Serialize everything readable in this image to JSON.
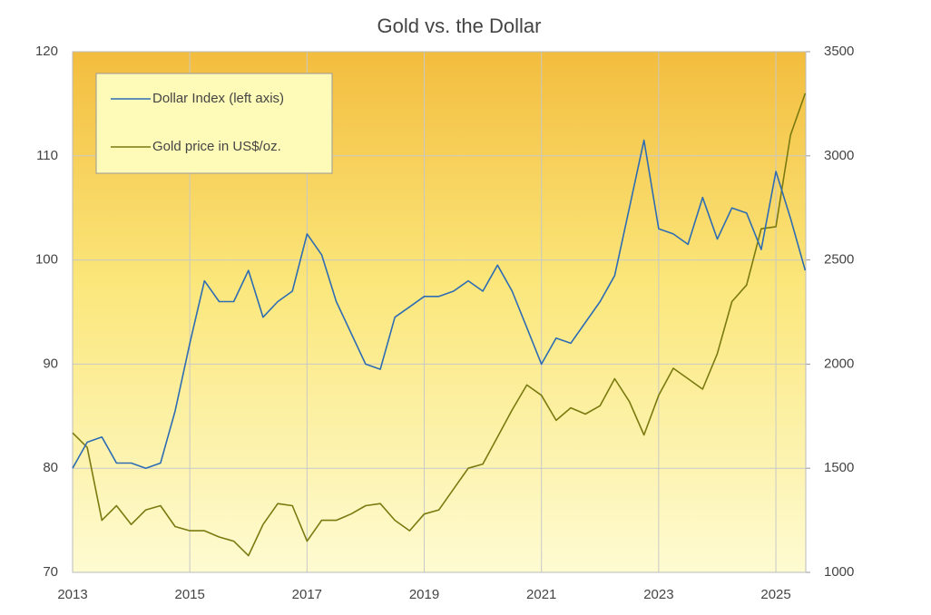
{
  "chart_data": {
    "type": "line",
    "title": "Gold vs. the Dollar",
    "x": [
      2013.0,
      2013.25,
      2013.5,
      2013.75,
      2014.0,
      2014.25,
      2014.5,
      2014.75,
      2015.0,
      2015.25,
      2015.5,
      2015.75,
      2016.0,
      2016.25,
      2016.5,
      2016.75,
      2017.0,
      2017.25,
      2017.5,
      2017.75,
      2018.0,
      2018.25,
      2018.5,
      2018.75,
      2019.0,
      2019.25,
      2019.5,
      2019.75,
      2020.0,
      2020.25,
      2020.5,
      2020.75,
      2021.0,
      2021.25,
      2021.5,
      2021.75,
      2022.0,
      2022.25,
      2022.5,
      2022.75,
      2023.0,
      2023.25,
      2023.5,
      2023.75,
      2024.0,
      2024.25,
      2024.5,
      2024.75,
      2025.0,
      2025.25,
      2025.5
    ],
    "series": [
      {
        "name": "Dollar Index (left axis)",
        "color": "#2e6db4",
        "axis": "y",
        "values": [
          80,
          82.5,
          83,
          80.5,
          80.5,
          80,
          80.5,
          85.5,
          92,
          98,
          96,
          96,
          99,
          94.5,
          96,
          97,
          102.5,
          100.5,
          96,
          93,
          90,
          89.5,
          94.5,
          95.5,
          96.5,
          96.5,
          97,
          98,
          97,
          99.5,
          97,
          93.5,
          90,
          92.5,
          92,
          94,
          96,
          98.5,
          105,
          111.5,
          103,
          102.5,
          101.5,
          106,
          102,
          105,
          104.5,
          101,
          108.5,
          104,
          99
        ]
      },
      {
        "name": "Gold price in US$/oz.",
        "color": "#7a7a10",
        "axis": "y2",
        "values": [
          1670,
          1600,
          1250,
          1320,
          1230,
          1300,
          1320,
          1220,
          1200,
          1200,
          1170,
          1150,
          1080,
          1230,
          1330,
          1320,
          1150,
          1250,
          1250,
          1280,
          1320,
          1330,
          1250,
          1200,
          1280,
          1300,
          1400,
          1500,
          1520,
          1650,
          1780,
          1900,
          1850,
          1730,
          1790,
          1760,
          1800,
          1930,
          1820,
          1660,
          1850,
          1980,
          1930,
          1880,
          2050,
          2300,
          2380,
          2650,
          2660,
          3100,
          3300
        ]
      }
    ],
    "xlim": [
      2013,
      2025.51
    ],
    "xticks": [
      2013,
      2015,
      2017,
      2019,
      2021,
      2023,
      2025
    ],
    "ylim": [
      70,
      120
    ],
    "yticks": [
      70,
      80,
      90,
      100,
      110,
      120
    ],
    "y2lim": [
      1000,
      3500
    ],
    "y2ticks": [
      1000,
      1500,
      2000,
      2500,
      3000,
      3500
    ],
    "grid": true,
    "legend": "upper left"
  }
}
